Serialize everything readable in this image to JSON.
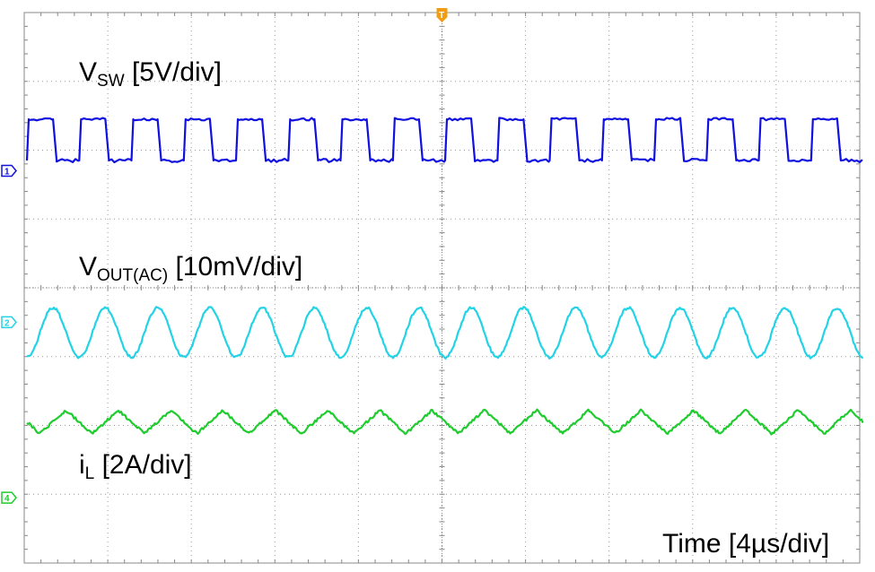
{
  "chart_data": {
    "type": "line",
    "title": "",
    "time_axis": {
      "label": "Time [4µs/div]",
      "divisions": 10,
      "per_division_us": 4
    },
    "vertical_divisions": 8,
    "trigger_marker": "T",
    "series": [
      {
        "name_main": "V",
        "name_sub": "SW",
        "scale": "[5V/div]",
        "channel": "1",
        "color": "#1010e0",
        "waveform": "square",
        "cycles": 16,
        "high_div": 1.55,
        "low_div": 0.05,
        "ground_div": 2.3,
        "period_us": 2.5,
        "duty": 0.5
      },
      {
        "name_main": "V",
        "name_sub": "OUT(AC)",
        "scale": "[10mV/div]",
        "channel": "2",
        "color": "#22d3e6",
        "waveform": "sine",
        "cycles": 16,
        "amplitude_div": 0.36,
        "center_div": 4.65,
        "period_us": 2.5
      },
      {
        "name_main": "i",
        "name_sub": "L",
        "scale": "[2A/div]",
        "channel": "4",
        "color": "#1fcc2e",
        "waveform": "triangle",
        "cycles": 16,
        "amplitude_div": 0.17,
        "center_div": 5.95,
        "period_us": 2.5
      }
    ]
  }
}
